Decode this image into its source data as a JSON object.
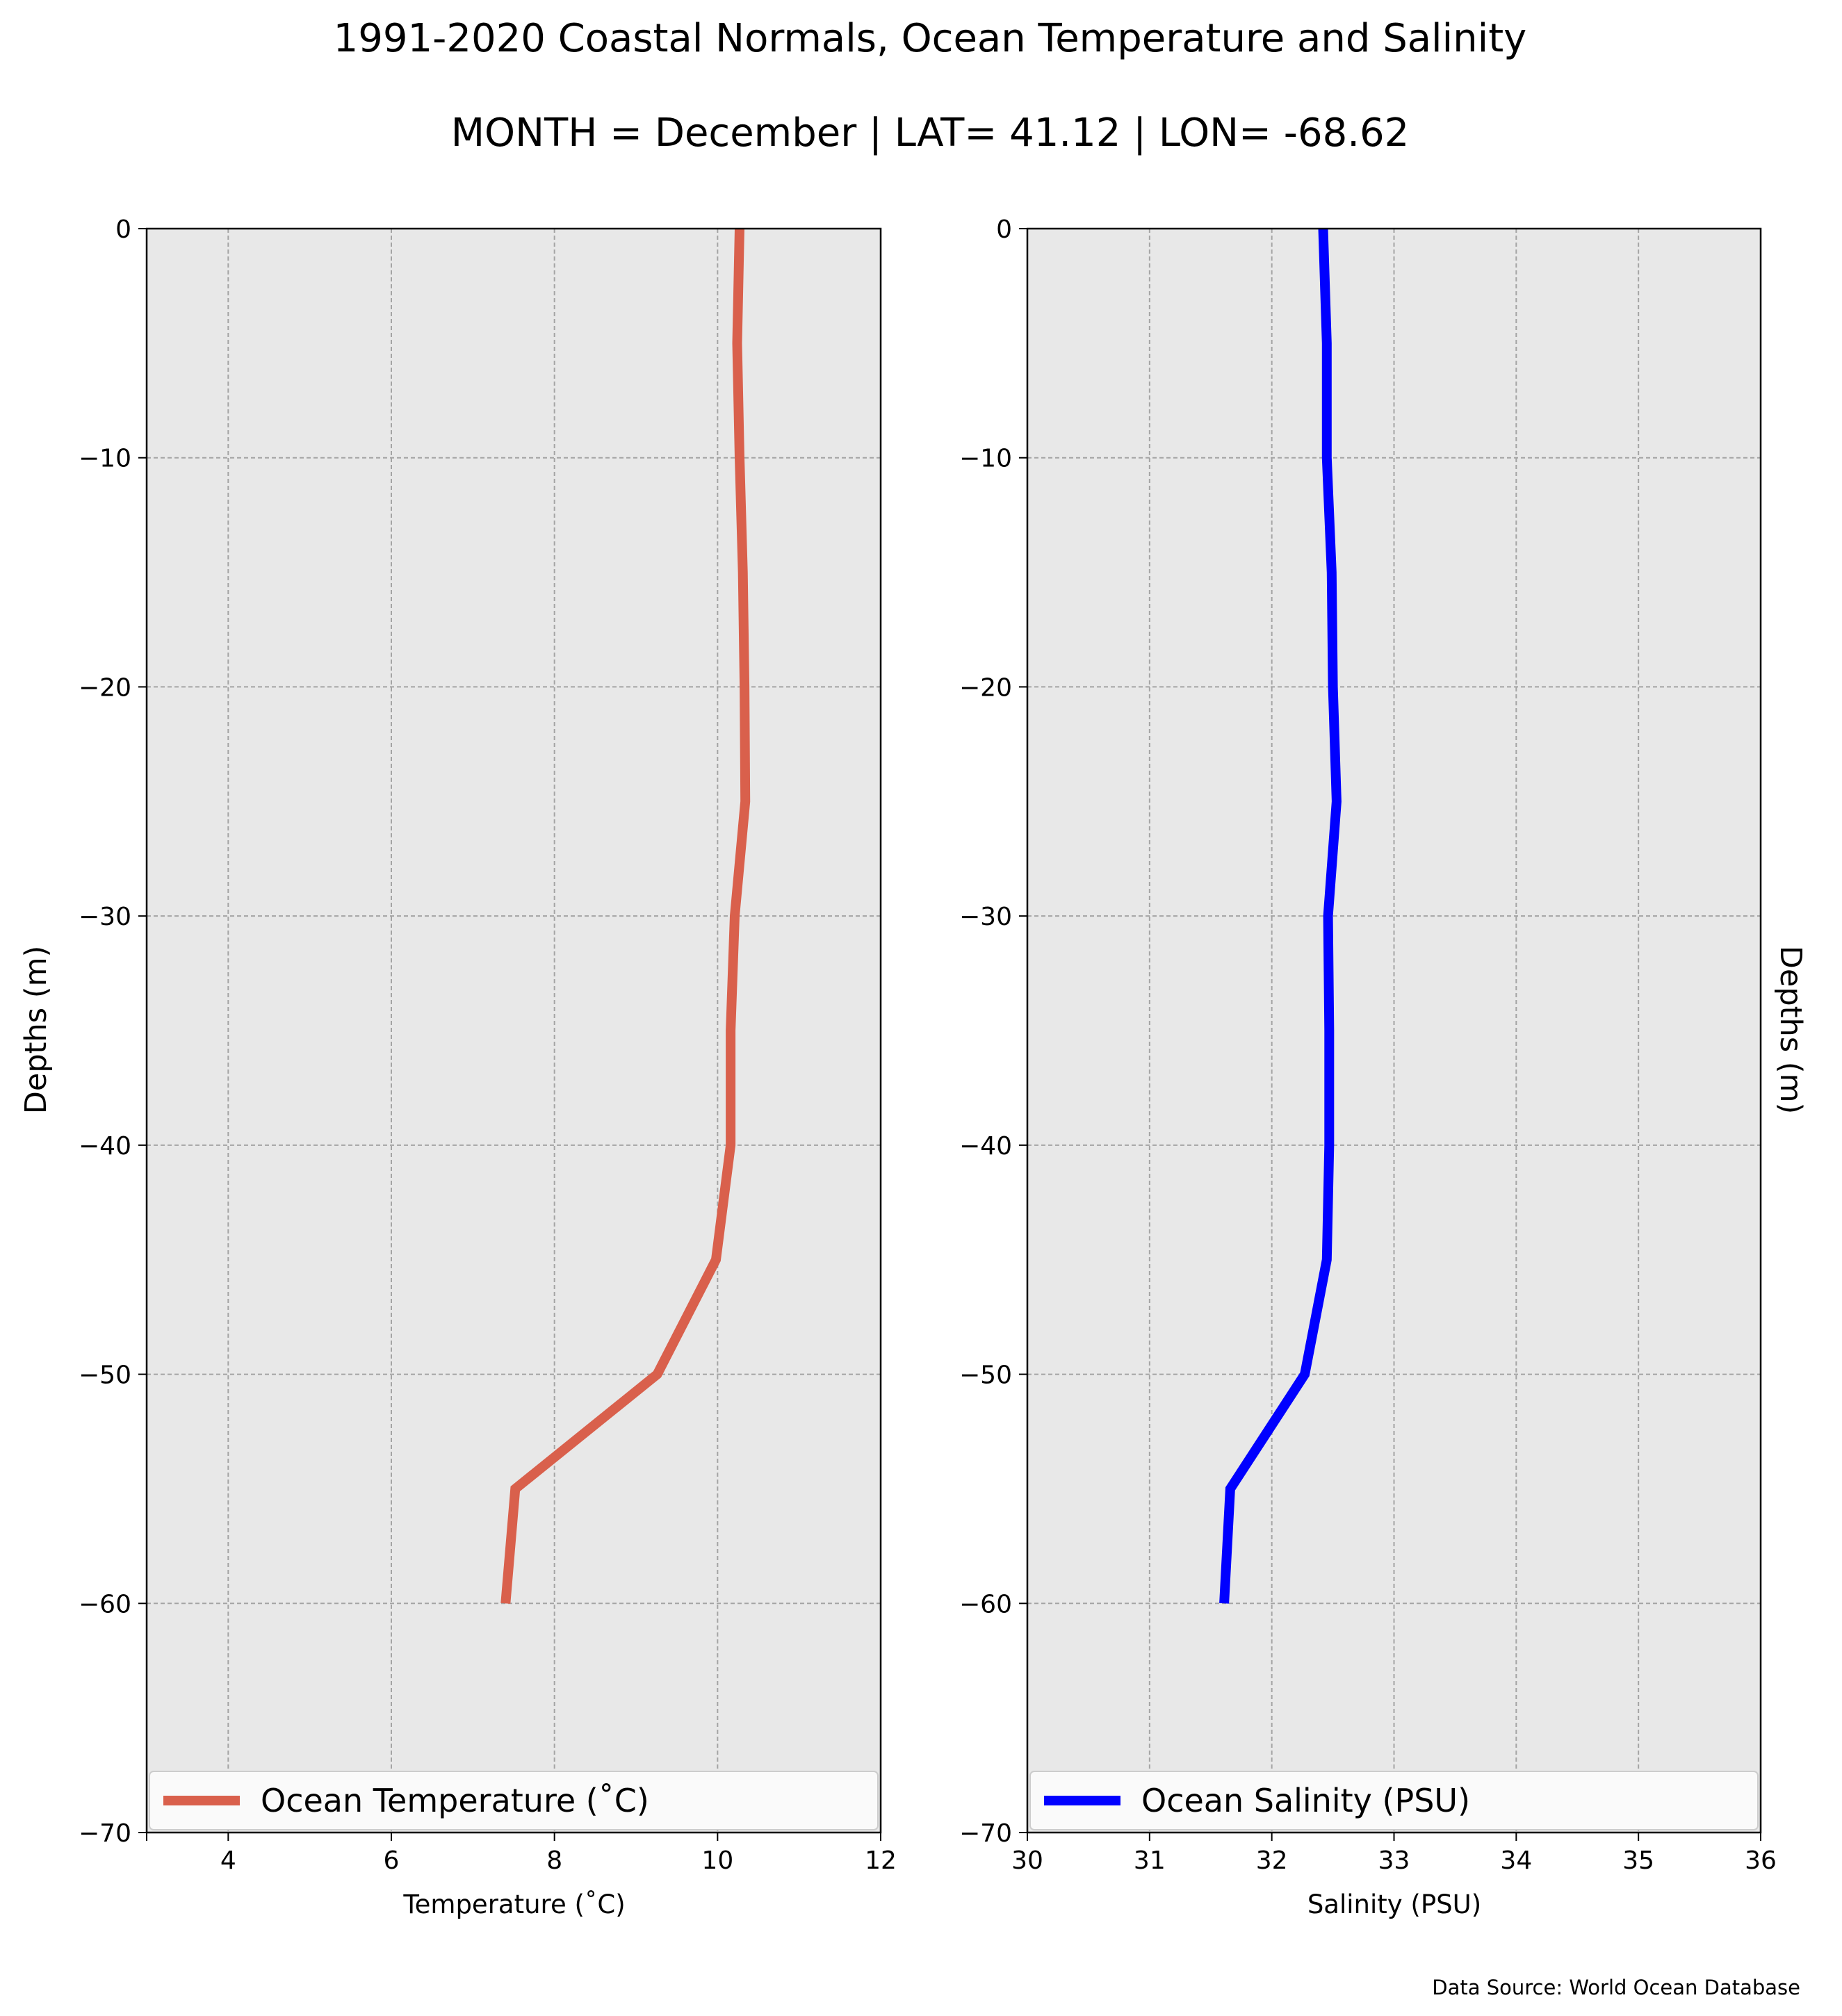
{
  "figure": {
    "title": "1991-2020 Coastal Normals, Ocean Temperature and Salinity",
    "subtitle": "MONTH = December | LAT= 41.12 | LON= -68.62",
    "source": "Data Source: World Ocean Database"
  },
  "chart_data": [
    {
      "type": "line",
      "xlabel": "Temperature ($^\\circ$C)",
      "xlabel_display": "Temperature (˚C)",
      "ylabel": "Depths (m)",
      "xlim": [
        3,
        12
      ],
      "ylim": [
        -70,
        0
      ],
      "xticks": [
        4,
        6,
        8,
        10,
        12
      ],
      "yticks": [
        0,
        -10,
        -20,
        -30,
        -40,
        -50,
        -60,
        -70
      ],
      "xtick_labels": [
        "4",
        "6",
        "8",
        "10",
        "12"
      ],
      "ytick_labels": [
        "0",
        "−10",
        "−20",
        "−30",
        "−40",
        "−50",
        "−60",
        "−70"
      ],
      "grid": true,
      "legend_position": "bottom",
      "series": [
        {
          "name": "Ocean Temperature (˚C)",
          "color": "#d9604c",
          "depths": [
            0,
            -5,
            -10,
            -15,
            -20,
            -25,
            -30,
            -35,
            -40,
            -45,
            -50,
            -55,
            -60
          ],
          "values": [
            10.27,
            10.24,
            10.27,
            10.31,
            10.33,
            10.34,
            10.21,
            10.16,
            10.16,
            9.98,
            9.26,
            7.52,
            7.4
          ]
        }
      ]
    },
    {
      "type": "line",
      "xlabel": "Salinity (PSU)",
      "ylabel": "Depths (m)",
      "xlim": [
        30,
        36
      ],
      "ylim": [
        -70,
        0
      ],
      "xticks": [
        30,
        31,
        32,
        33,
        34,
        35,
        36
      ],
      "yticks": [
        0,
        -10,
        -20,
        -30,
        -40,
        -50,
        -60,
        -70
      ],
      "xtick_labels": [
        "30",
        "31",
        "32",
        "33",
        "34",
        "35",
        "36"
      ],
      "ytick_labels": [
        "0",
        "−10",
        "−20",
        "−30",
        "−40",
        "−50",
        "−60",
        "−70"
      ],
      "grid": true,
      "legend_position": "bottom",
      "series": [
        {
          "name": "Ocean Salinity (PSU)",
          "color": "#0000ff",
          "depths": [
            0,
            -5,
            -10,
            -15,
            -20,
            -25,
            -30,
            -35,
            -40,
            -45,
            -50,
            -55,
            -60
          ],
          "values": [
            32.42,
            32.45,
            32.45,
            32.49,
            32.5,
            32.53,
            32.46,
            32.47,
            32.47,
            32.45,
            32.27,
            31.66,
            31.61
          ]
        }
      ]
    }
  ]
}
